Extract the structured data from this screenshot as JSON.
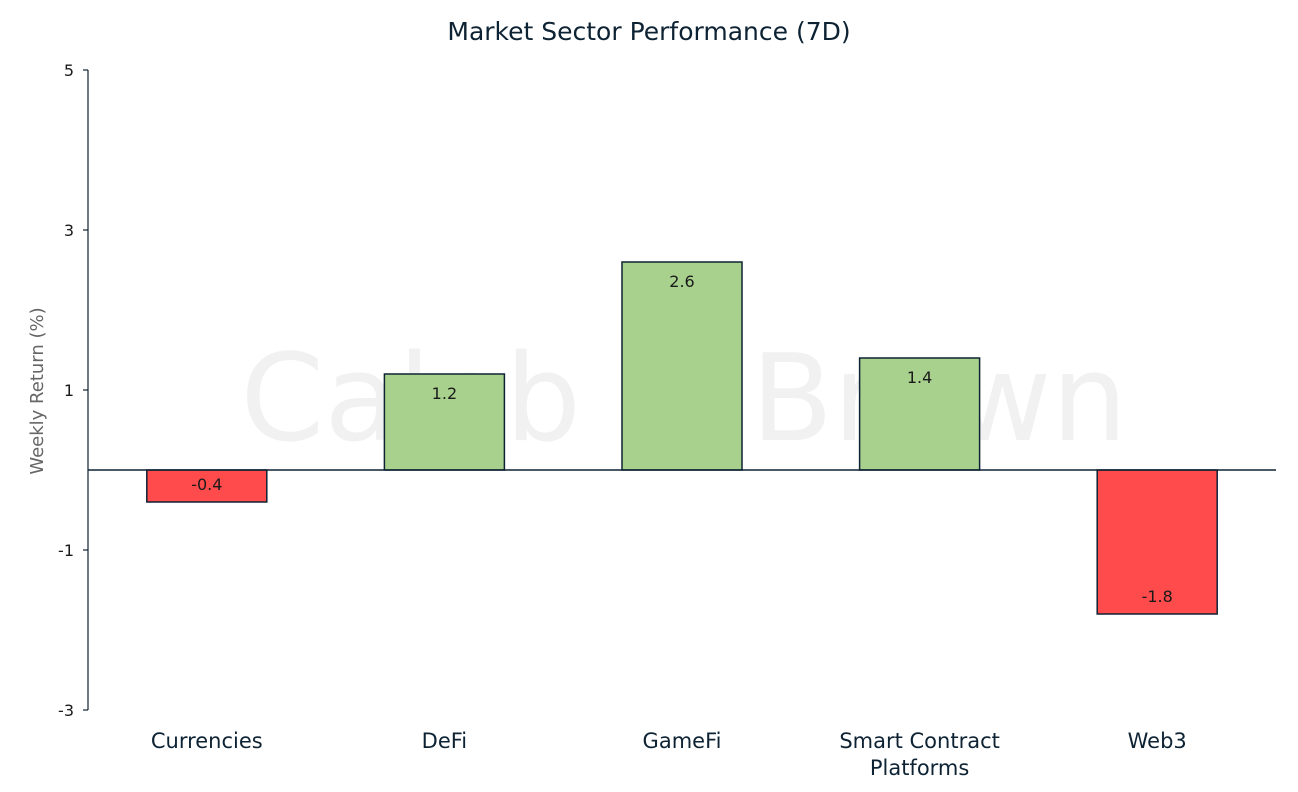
{
  "chart_data": {
    "type": "bar",
    "title": "Market Sector Performance (7D)",
    "ylabel": "Weekly Return (%)",
    "xlabel": "",
    "categories": [
      "Currencies",
      "DeFi",
      "GameFi",
      "Smart Contract Platforms",
      "Web3"
    ],
    "category_lines": [
      [
        "Currencies"
      ],
      [
        "DeFi"
      ],
      [
        "GameFi"
      ],
      [
        "Smart Contract",
        "Platforms"
      ],
      [
        "Web3"
      ]
    ],
    "values": [
      -0.4,
      1.2,
      2.6,
      1.4,
      -1.8
    ],
    "data_labels": [
      "-0.4",
      "1.2",
      "2.6",
      "1.4",
      "-1.8"
    ],
    "ylim": [
      -3,
      5
    ],
    "yticks": [
      5,
      3,
      1,
      -1,
      -3
    ],
    "grid": false,
    "legend": "none",
    "watermark": "Caleb & Brown",
    "colors": {
      "positive": "#a9d18e",
      "negative": "#ff4b4b",
      "bar_edge": "#0d2233",
      "axis": "#0d2233"
    }
  }
}
